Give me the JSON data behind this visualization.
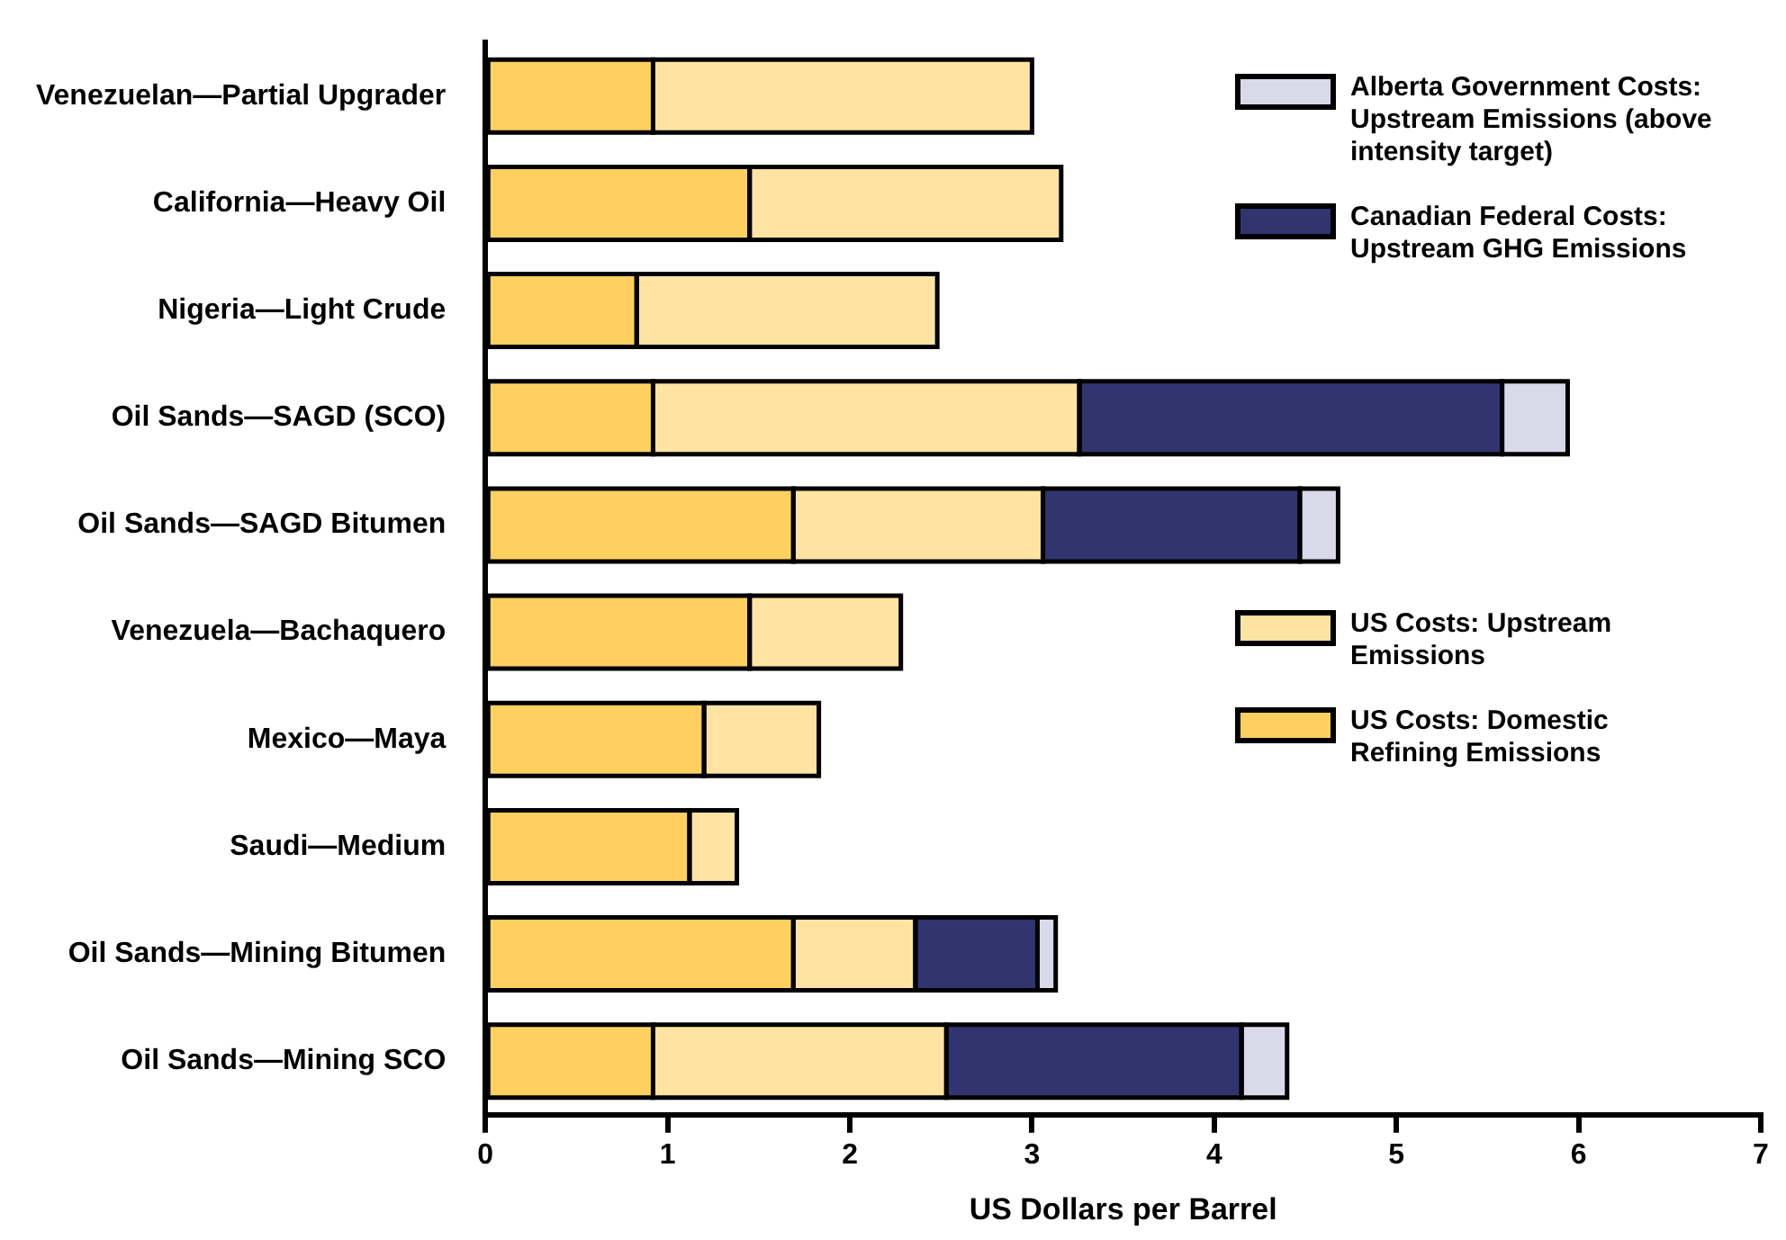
{
  "chart_data": {
    "type": "bar",
    "orientation": "horizontal",
    "stacked": true,
    "xlabel": "US Dollars per Barrel",
    "categories": [
      "Venezuelan—Partial Upgrader",
      "California—Heavy Oil",
      "Nigeria—Light Crude",
      "Oil Sands—SAGD (SCO)",
      "Oil Sands—SAGD Bitumen",
      "Venezuela—Bachaquero",
      "Mexico—Maya",
      "Saudi—Medium",
      "Oil Sands—Mining Bitumen",
      "Oil Sands—Mining SCO"
    ],
    "series": [
      {
        "name": "US Costs: Domestic Refining Emissions",
        "color": "#fdd060",
        "values": [
          0.92,
          1.45,
          0.83,
          0.92,
          1.69,
          1.45,
          1.2,
          1.12,
          1.69,
          0.92
        ]
      },
      {
        "name": "US Costs: Upstream Emissions",
        "color": "#fee3a2",
        "values": [
          2.08,
          1.71,
          1.65,
          2.34,
          1.37,
          0.83,
          0.63,
          0.26,
          0.67,
          1.61
        ]
      },
      {
        "name": "Canadian Federal Costs: Upstream GHG Emissions",
        "color": "#31346f",
        "values": [
          null,
          null,
          null,
          2.32,
          1.41,
          null,
          null,
          null,
          0.67,
          1.62
        ]
      },
      {
        "name": "Alberta Government Costs: Upstream Emissions (above intensity target)",
        "color": "#d9d9ea",
        "values": [
          null,
          null,
          null,
          0.36,
          0.21,
          null,
          null,
          null,
          0.1,
          0.25
        ]
      }
    ],
    "xlim": [
      0,
      7
    ],
    "xticks": [
      0,
      1,
      2,
      3,
      4,
      5,
      6,
      7
    ],
    "grid": false,
    "legend": "right"
  }
}
